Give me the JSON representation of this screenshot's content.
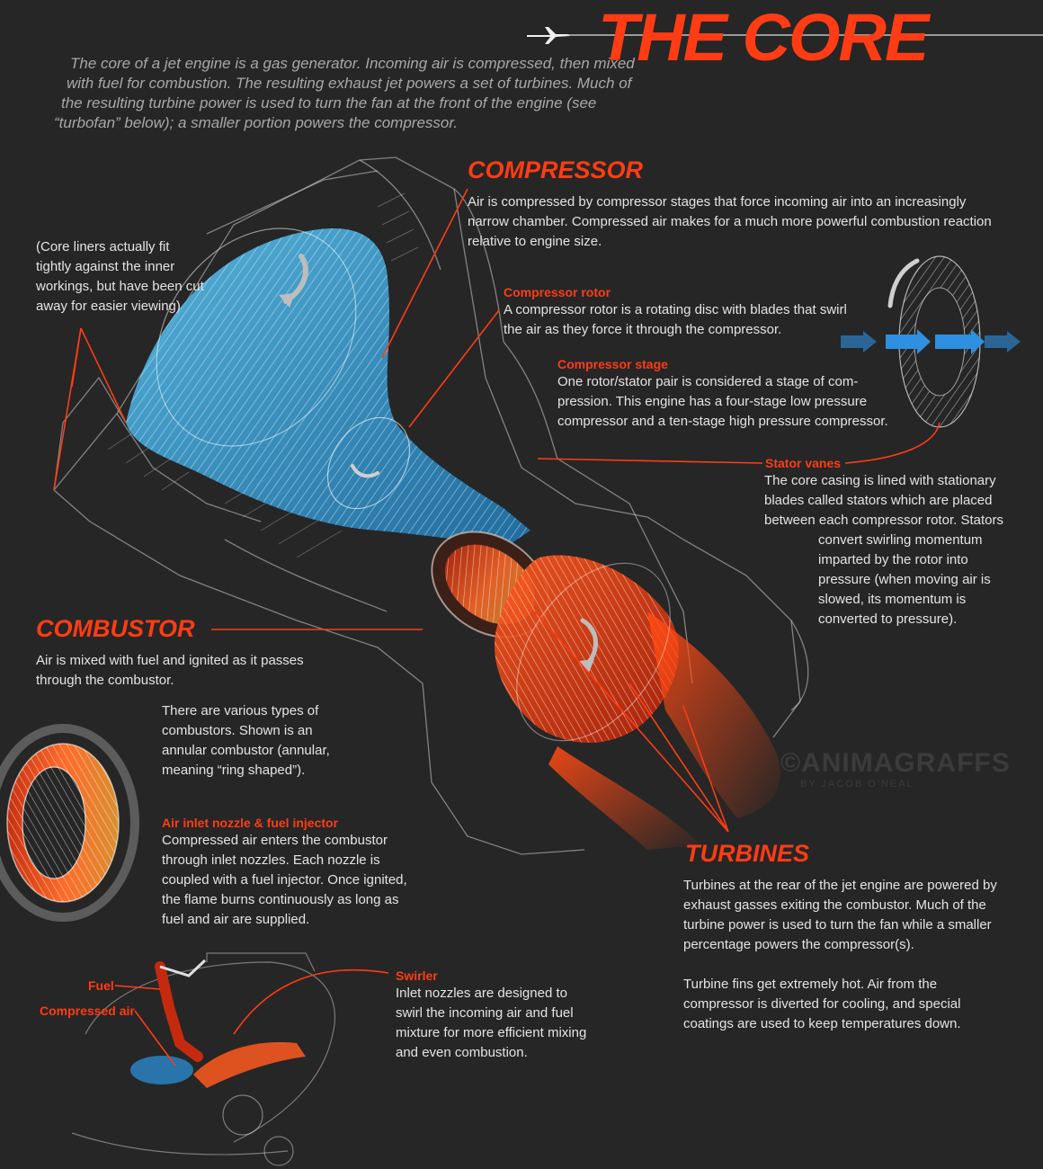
{
  "title": "THE CORE",
  "intro": [
    "The core of a jet engine is a gas generator. Incoming air is compressed, then mixed",
    "with fuel for combustion. The resulting exhaust jet powers a set of turbines. Much of",
    "the resulting turbine power is used to turn the fan at the front of the engine (see",
    "“turbofan” below); a smaller portion powers the compressor."
  ],
  "liner_note": [
    "(Core liners actually fit",
    "tightly against the inner",
    "workings, but have been cut",
    "away for easier viewing)"
  ],
  "compressor": {
    "heading": "COMPRESSOR",
    "body": [
      "Air is compressed by compressor stages that force incoming air into an increasingly",
      "narrow chamber. Compressed air makes for a much more powerful combustion reaction",
      "relative to engine size."
    ],
    "rotor": {
      "label": "Compressor rotor",
      "body": [
        "A compressor rotor is a rotating disc with blades that swirl",
        "the air as they force it through the compressor."
      ]
    },
    "stage": {
      "label": "Compressor stage",
      "body": [
        "One rotor/stator pair is considered a stage of com-",
        "pression. This engine has a four-stage low pressure",
        "compressor and a ten-stage high pressure compressor."
      ]
    },
    "stator": {
      "label": "Stator vanes",
      "body": [
        "The core casing is lined with stationary",
        "blades called stators which are placed",
        "between each compressor rotor. Stators"
      ],
      "body2": [
        "convert swirling momentum",
        "imparted by the rotor into",
        "pressure (when moving air is",
        "slowed, its momentum is",
        "converted to pressure)."
      ]
    }
  },
  "combustor": {
    "heading": "COMBUSTOR",
    "body": [
      "Air is mixed with fuel and ignited as it passes",
      "through the combustor."
    ],
    "types": [
      "There are various types of",
      "combustors. Shown is an",
      "annular combustor (annular,",
      "meaning “ring shaped”)."
    ],
    "nozzle": {
      "label": "Air inlet nozzle & fuel injector",
      "body": [
        "Compressed air enters the combustor",
        "through inlet nozzles. Each nozzle is",
        "coupled with a fuel injector. Once ignited,",
        "the flame burns continuously as long as",
        "fuel and air are supplied."
      ]
    },
    "swirler": {
      "label": "Swirler",
      "body": [
        "Inlet nozzles are designed to",
        "swirl the incoming air and fuel",
        "mixture for more efficient mixing",
        "and even combustion."
      ]
    },
    "fuel_label": "Fuel",
    "air_label": "Compressed air"
  },
  "turbines": {
    "heading": "TURBINES",
    "body": [
      "Turbines at the rear of the jet engine are powered by",
      "exhaust gasses exiting the combustor. Much of the",
      "turbine power is used to turn the fan while a smaller",
      "percentage powers the compressor(s)."
    ],
    "body2": [
      "Turbine fins get extremely hot. Air from the",
      "compressor is diverted for cooling, and special",
      "coatings are used to keep temperatures down."
    ]
  },
  "watermark": "©ANIMAGRAFFS",
  "watermark_sub": "BY JACOB O'NEAL",
  "colors": {
    "accent": "#ff3c14",
    "background": "#262626",
    "compressor_blue": "#3ab0e8",
    "text": "#e4e4e4"
  }
}
